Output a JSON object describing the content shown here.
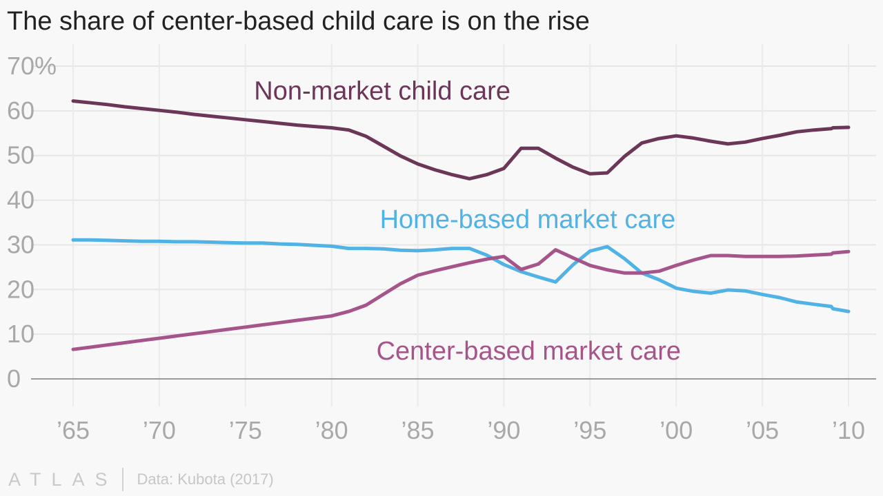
{
  "chart_data": {
    "type": "line",
    "title": "The share of center-based child care is on the rise",
    "xlabel": "",
    "ylabel": "",
    "xlim": [
      1965,
      2010
    ],
    "ylim": [
      0,
      70
    ],
    "y_ticks": [
      {
        "value": 0,
        "label": "0"
      },
      {
        "value": 10,
        "label": "10"
      },
      {
        "value": 20,
        "label": "20"
      },
      {
        "value": 30,
        "label": "30"
      },
      {
        "value": 40,
        "label": "40"
      },
      {
        "value": 50,
        "label": "50"
      },
      {
        "value": 60,
        "label": "60"
      },
      {
        "value": 70,
        "label": "70%"
      }
    ],
    "x_ticks": [
      {
        "value": 1965,
        "label": "’65"
      },
      {
        "value": 1970,
        "label": "’70"
      },
      {
        "value": 1975,
        "label": "’75"
      },
      {
        "value": 1980,
        "label": "’80"
      },
      {
        "value": 1985,
        "label": "’85"
      },
      {
        "value": 1990,
        "label": "’90"
      },
      {
        "value": 1995,
        "label": "’95"
      },
      {
        "value": 2000,
        "label": "’00"
      },
      {
        "value": 2005,
        "label": "’05"
      },
      {
        "value": 2010,
        "label": "’10"
      }
    ],
    "grid": true,
    "series": [
      {
        "name": "Non-market child care",
        "color": "#6b3657",
        "label_anchor": {
          "x": 1975.5,
          "y": 62.5
        },
        "points": [
          [
            1965,
            62.2
          ],
          [
            1966,
            61.8
          ],
          [
            1967,
            61.4
          ],
          [
            1968,
            60.9
          ],
          [
            1969,
            60.5
          ],
          [
            1970,
            60.1
          ],
          [
            1971,
            59.7
          ],
          [
            1972,
            59.2
          ],
          [
            1973,
            58.8
          ],
          [
            1974,
            58.4
          ],
          [
            1975,
            58.0
          ],
          [
            1976,
            57.6
          ],
          [
            1977,
            57.2
          ],
          [
            1978,
            56.8
          ],
          [
            1979,
            56.5
          ],
          [
            1980,
            56.2
          ],
          [
            1981,
            55.7
          ],
          [
            1982,
            54.3
          ],
          [
            1983,
            52.1
          ],
          [
            1984,
            49.9
          ],
          [
            1985,
            48.1
          ],
          [
            1986,
            46.8
          ],
          [
            1987,
            45.7
          ],
          [
            1988,
            44.8
          ],
          [
            1989,
            45.7
          ],
          [
            1990,
            47.1
          ],
          [
            1991,
            51.6
          ],
          [
            1992,
            51.6
          ],
          [
            1993,
            49.4
          ],
          [
            1994,
            47.4
          ],
          [
            1995,
            45.9
          ],
          [
            1996,
            46.1
          ],
          [
            1997,
            49.8
          ],
          [
            1998,
            52.8
          ],
          [
            1999,
            53.8
          ],
          [
            2000,
            54.4
          ],
          [
            2001,
            53.9
          ],
          [
            2002,
            53.2
          ],
          [
            2003,
            52.6
          ],
          [
            2004,
            53.0
          ],
          [
            2005,
            53.8
          ],
          [
            2006,
            54.5
          ],
          [
            2007,
            55.3
          ],
          [
            2008,
            55.7
          ],
          [
            2009,
            56.0
          ],
          [
            2009.1,
            56.2
          ],
          [
            2010,
            56.3
          ]
        ]
      },
      {
        "name": "Home-based market care",
        "color": "#51b2e5",
        "label_anchor": {
          "x": 1982.8,
          "y": 33.8
        },
        "points": [
          [
            1965,
            31.1
          ],
          [
            1966,
            31.1
          ],
          [
            1967,
            31.0
          ],
          [
            1968,
            30.9
          ],
          [
            1969,
            30.8
          ],
          [
            1970,
            30.8
          ],
          [
            1971,
            30.7
          ],
          [
            1972,
            30.7
          ],
          [
            1973,
            30.6
          ],
          [
            1974,
            30.5
          ],
          [
            1975,
            30.4
          ],
          [
            1976,
            30.4
          ],
          [
            1977,
            30.2
          ],
          [
            1978,
            30.1
          ],
          [
            1979,
            29.9
          ],
          [
            1980,
            29.7
          ],
          [
            1981,
            29.2
          ],
          [
            1982,
            29.2
          ],
          [
            1983,
            29.1
          ],
          [
            1984,
            28.8
          ],
          [
            1985,
            28.7
          ],
          [
            1986,
            28.9
          ],
          [
            1987,
            29.2
          ],
          [
            1988,
            29.2
          ],
          [
            1989,
            27.7
          ],
          [
            1990,
            25.6
          ],
          [
            1991,
            24.0
          ],
          [
            1992,
            22.8
          ],
          [
            1993,
            21.7
          ],
          [
            1994,
            25.5
          ],
          [
            1995,
            28.6
          ],
          [
            1996,
            29.6
          ],
          [
            1997,
            26.9
          ],
          [
            1998,
            23.7
          ],
          [
            1999,
            22.2
          ],
          [
            2000,
            20.3
          ],
          [
            2001,
            19.6
          ],
          [
            2002,
            19.2
          ],
          [
            2003,
            19.9
          ],
          [
            2004,
            19.7
          ],
          [
            2005,
            18.9
          ],
          [
            2006,
            18.2
          ],
          [
            2007,
            17.2
          ],
          [
            2008,
            16.7
          ],
          [
            2009,
            16.2
          ],
          [
            2009.1,
            15.7
          ],
          [
            2010,
            15.1
          ]
        ]
      },
      {
        "name": "Center-based market care",
        "color": "#a6558a",
        "label_anchor": {
          "x": 1982.6,
          "y": 4.3
        },
        "points": [
          [
            1965,
            6.6
          ],
          [
            1966,
            7.1
          ],
          [
            1967,
            7.6
          ],
          [
            1968,
            8.1
          ],
          [
            1969,
            8.6
          ],
          [
            1970,
            9.1
          ],
          [
            1971,
            9.6
          ],
          [
            1972,
            10.1
          ],
          [
            1973,
            10.6
          ],
          [
            1974,
            11.1
          ],
          [
            1975,
            11.6
          ],
          [
            1976,
            12.1
          ],
          [
            1977,
            12.6
          ],
          [
            1978,
            13.1
          ],
          [
            1979,
            13.6
          ],
          [
            1980,
            14.1
          ],
          [
            1981,
            15.1
          ],
          [
            1982,
            16.5
          ],
          [
            1983,
            18.9
          ],
          [
            1984,
            21.3
          ],
          [
            1985,
            23.2
          ],
          [
            1986,
            24.2
          ],
          [
            1987,
            25.1
          ],
          [
            1988,
            26.0
          ],
          [
            1989,
            26.8
          ],
          [
            1990,
            27.4
          ],
          [
            1991,
            24.5
          ],
          [
            1992,
            25.7
          ],
          [
            1993,
            28.9
          ],
          [
            1994,
            27.1
          ],
          [
            1995,
            25.4
          ],
          [
            1996,
            24.4
          ],
          [
            1997,
            23.7
          ],
          [
            1998,
            23.7
          ],
          [
            1999,
            24.1
          ],
          [
            2000,
            25.4
          ],
          [
            2001,
            26.6
          ],
          [
            2002,
            27.6
          ],
          [
            2003,
            27.6
          ],
          [
            2004,
            27.4
          ],
          [
            2005,
            27.4
          ],
          [
            2006,
            27.4
          ],
          [
            2007,
            27.5
          ],
          [
            2008,
            27.7
          ],
          [
            2009,
            27.9
          ],
          [
            2009.1,
            28.2
          ],
          [
            2010,
            28.5
          ]
        ]
      }
    ]
  },
  "footer": {
    "logo": "ATLAS",
    "source": "Data: Kubota (2017)"
  }
}
